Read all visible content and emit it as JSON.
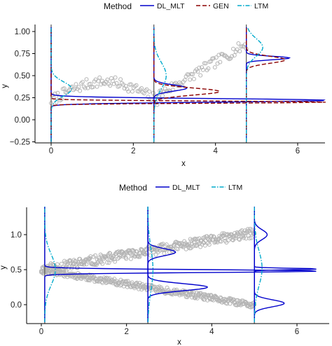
{
  "chart_data": [
    {
      "type": "scatter",
      "xlabel": "x",
      "ylabel": "y",
      "xlim": [
        -0.35,
        6.7
      ],
      "ylim": [
        -0.25,
        1.05
      ],
      "x_ticks": [
        0,
        2,
        4,
        6
      ],
      "y_ticks": [
        -0.25,
        0.0,
        0.25,
        0.5,
        0.75,
        1.0
      ],
      "y_tick_labels": [
        "−0.25",
        "0.00",
        "0.25",
        "0.50",
        "0.75",
        "1.00"
      ],
      "legend": {
        "title": "Method",
        "position": "top",
        "entries": [
          {
            "label": "DL_MLT",
            "color": "#0000cc",
            "dash": "solid"
          },
          {
            "label": "GEN",
            "color": "#8b0000",
            "dash": "dashed"
          },
          {
            "label": "LTM",
            "color": "#00aacc",
            "dash": "dotdash"
          }
        ]
      },
      "points": {
        "color": "#b4b4b4",
        "xmin": 0.0,
        "xmax": 4.75
      },
      "conditioning_x": [
        0.0,
        2.5,
        4.75
      ],
      "series": [
        {
          "name": "DL_MLT",
          "color": "#0000cc",
          "densities": [
            {
              "x0": 0.0,
              "center": 0.22,
              "sd": 0.02,
              "peak": 6.7,
              "xend": 6.7
            },
            {
              "x0": 2.5,
              "center": 0.36,
              "sd": 0.035,
              "peak": 0.8,
              "xend": 3.3
            },
            {
              "x0": 4.75,
              "center": 0.7,
              "sd": 0.02,
              "peak": 1.05,
              "xend": 5.8
            }
          ]
        },
        {
          "name": "GEN",
          "color": "#8b0000",
          "densities": [
            {
              "x0": 0.0,
              "center": 0.2,
              "sd": 0.012,
              "peak": 6.7,
              "xend": 6.7
            },
            {
              "x0": 2.5,
              "center": 0.32,
              "sd": 0.04,
              "peak": 1.7,
              "xend": 4.1
            },
            {
              "x0": 4.75,
              "center": 0.68,
              "sd": 0.04,
              "peak": 0.75,
              "xend": 5.7
            }
          ]
        },
        {
          "name": "LTM",
          "color": "#00aacc",
          "densities": [
            {
              "x0": 0.0,
              "center": 0.35,
              "sd": 0.08,
              "peak": 0.3,
              "xend": 0.5
            },
            {
              "x0": 2.5,
              "center": 0.5,
              "sd": 0.15,
              "peak": 0.2,
              "xend": 2.8
            },
            {
              "x0": 4.75,
              "center": 0.82,
              "sd": 0.1,
              "peak": 0.3,
              "xend": 5.15
            }
          ]
        }
      ]
    },
    {
      "type": "scatter",
      "xlabel": "x",
      "ylabel": "y",
      "xlim": [
        -0.4,
        6.95
      ],
      "ylim": [
        -0.25,
        1.4
      ],
      "x_ticks": [
        0,
        2,
        4,
        6
      ],
      "y_ticks": [
        0.0,
        0.5,
        1.0
      ],
      "y_tick_labels": [
        "0.0",
        "0.5",
        "1.0"
      ],
      "legend": {
        "title": "Method",
        "position": "top",
        "entries": [
          {
            "label": "DL_MLT",
            "color": "#0000cc",
            "dash": "solid"
          },
          {
            "label": "LTM",
            "color": "#00aacc",
            "dash": "dotdash"
          }
        ]
      },
      "points": {
        "color": "#b4b4b4",
        "xmin": 0.0,
        "xmax": 5.0
      },
      "conditioning_x": [
        0.08,
        2.5,
        5.0
      ],
      "series": [
        {
          "name": "DL_MLT",
          "color": "#0000cc",
          "densities": [
            {
              "x0": 0.08,
              "center": 0.48,
              "sd": 0.02,
              "peak": 6.5,
              "xend": 6.5
            },
            {
              "x0": 2.5,
              "center": 0.75,
              "sd": 0.05,
              "peak": 0.65,
              "xend": 3.15
            },
            {
              "x0": 2.5,
              "center": 0.25,
              "sd": 0.05,
              "peak": 1.4,
              "xend": 3.9
            },
            {
              "x0": 5.0,
              "center": 1.0,
              "sd": 0.07,
              "peak": 0.3,
              "xend": 5.3
            },
            {
              "x0": 5.0,
              "center": 0.02,
              "sd": 0.05,
              "peak": 0.7,
              "xend": 5.7
            },
            {
              "x0": 5.0,
              "center": 0.51,
              "sd": 0.01,
              "peak": 1.4,
              "xend": 6.5
            }
          ]
        },
        {
          "name": "LTM",
          "color": "#00aacc",
          "densities": [
            {
              "x0": 0.08,
              "center": 0.5,
              "sd": 0.22,
              "peak": 0.25,
              "xend": 0.33
            },
            {
              "x0": 2.5,
              "center": 0.5,
              "sd": 0.3,
              "peak": 0.1,
              "xend": 2.62
            },
            {
              "x0": 5.0,
              "center": 0.52,
              "sd": 0.25,
              "peak": 0.18,
              "xend": 5.18
            }
          ]
        }
      ]
    }
  ]
}
